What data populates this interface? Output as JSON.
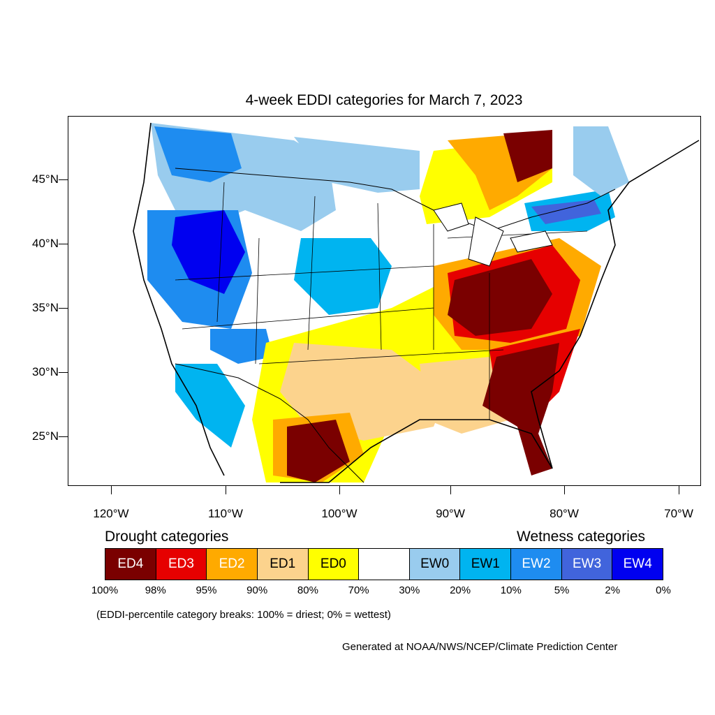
{
  "title": "4-week EDDI categories for March 7, 2023",
  "latitude_labels": [
    "45°N",
    "40°N",
    "35°N",
    "30°N",
    "25°N"
  ],
  "longitude_labels": [
    "120°W",
    "110°W",
    "100°W",
    "90°W",
    "80°W",
    "70°W"
  ],
  "legend": {
    "drought_heading": "Drought categories",
    "wetness_heading": "Wetness categories",
    "categories": [
      {
        "label": "ED4",
        "color": "#7a0000",
        "text_color": "#ffffff"
      },
      {
        "label": "ED3",
        "color": "#e60000",
        "text_color": "#ffffff"
      },
      {
        "label": "ED2",
        "color": "#ffaa00",
        "text_color": "#ffffff"
      },
      {
        "label": "ED1",
        "color": "#fcd38d",
        "text_color": "#000000"
      },
      {
        "label": "ED0",
        "color": "#ffff00",
        "text_color": "#000000"
      },
      {
        "label": "",
        "color": "#ffffff",
        "text_color": "#000000"
      },
      {
        "label": "EW0",
        "color": "#99ccee",
        "text_color": "#000000"
      },
      {
        "label": "EW1",
        "color": "#00b4f0",
        "text_color": "#000000"
      },
      {
        "label": "EW2",
        "color": "#1e8cf0",
        "text_color": "#ffffff"
      },
      {
        "label": "EW3",
        "color": "#4164dc",
        "text_color": "#ffffff"
      },
      {
        "label": "EW4",
        "color": "#0000f0",
        "text_color": "#ffffff"
      }
    ],
    "percentiles": [
      "100%",
      "98%",
      "95%",
      "90%",
      "80%",
      "70%",
      "30%",
      "20%",
      "10%",
      "5%",
      "2%",
      "0%"
    ]
  },
  "note": "(EDDI-percentile category breaks: 100% = driest; 0% = wettest)",
  "credit": "Generated at NOAA/NWS/NCEP/Climate Prediction Center"
}
